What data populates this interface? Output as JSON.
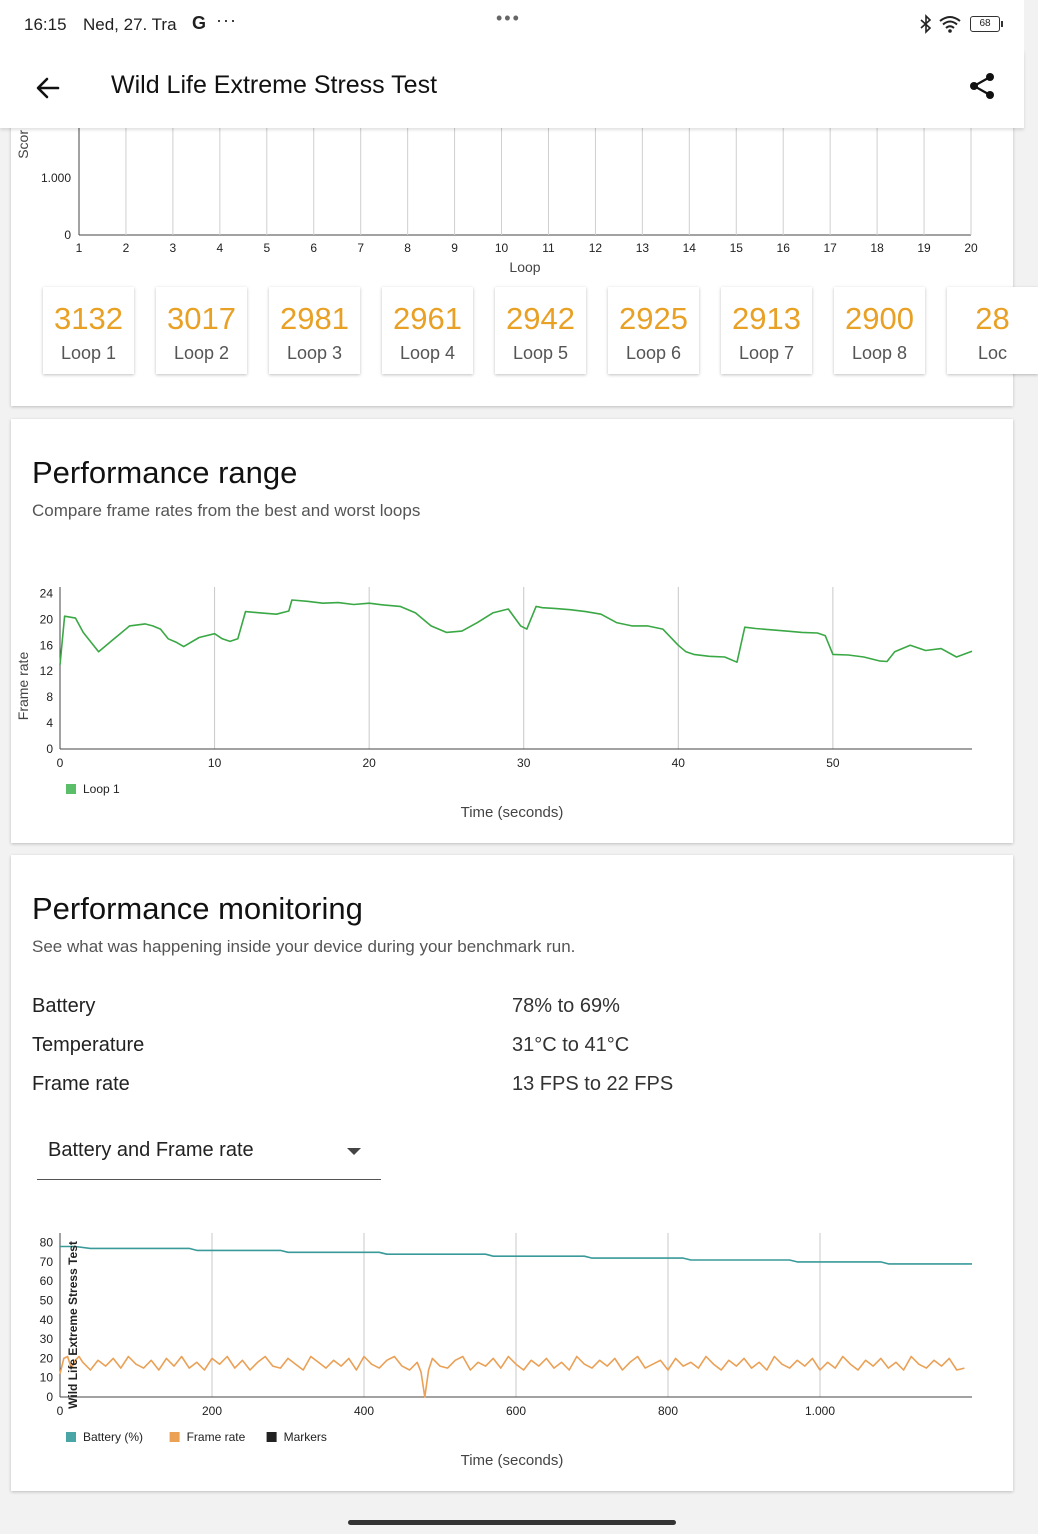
{
  "status": {
    "time": "16:15",
    "date": "Ned, 27. Tra",
    "g_icon": "G",
    "more": "···",
    "battery_level": "68",
    "icons": [
      "bluetooth-icon",
      "wifi-icon",
      "battery-icon"
    ]
  },
  "appbar": {
    "title": "Wild Life Extreme Stress Test",
    "icons": [
      "arrow-back-icon",
      "share-icon"
    ]
  },
  "score_chart": {
    "chart_data": {
      "type": "bar",
      "ylabel": "Scor",
      "xlabel": "Loop",
      "y_tick_labels": [
        "1.000",
        "0"
      ],
      "categories": [
        "1",
        "2",
        "3",
        "4",
        "5",
        "6",
        "7",
        "8",
        "9",
        "10",
        "11",
        "12",
        "13",
        "14",
        "15",
        "16",
        "17",
        "18",
        "19",
        "20"
      ],
      "grid": true
    }
  },
  "loops": [
    {
      "score": "3132",
      "label": "Loop 1"
    },
    {
      "score": "3017",
      "label": "Loop 2"
    },
    {
      "score": "2981",
      "label": "Loop 3"
    },
    {
      "score": "2961",
      "label": "Loop 4"
    },
    {
      "score": "2942",
      "label": "Loop 5"
    },
    {
      "score": "2925",
      "label": "Loop 6"
    },
    {
      "score": "2913",
      "label": "Loop 7"
    },
    {
      "score": "2900",
      "label": "Loop 8"
    },
    {
      "score": "28",
      "label": "Loc"
    }
  ],
  "range": {
    "title": "Performance range",
    "subtitle": "Compare frame rates from the best and worst loops",
    "chart_data": {
      "type": "line",
      "xlabel": "Time (seconds)",
      "ylabel": "Frame rate",
      "xlim": [
        0,
        59
      ],
      "ylim": [
        0,
        25
      ],
      "x_ticks": [
        0,
        10,
        20,
        30,
        40,
        50
      ],
      "y_ticks": [
        0,
        4,
        8,
        12,
        16,
        20,
        24
      ],
      "legend_position": "bottom-left",
      "series": [
        {
          "name": "Loop 1",
          "color": "#3aa845",
          "x": [
            0,
            0.3,
            1,
            1.5,
            2.5,
            3.5,
            4.5,
            5.5,
            6,
            6.5,
            7,
            7.5,
            8,
            9,
            10,
            10.5,
            11,
            11.5,
            12,
            13,
            14,
            14.8,
            15,
            16,
            17,
            18,
            19,
            20,
            21,
            22,
            23,
            24,
            25,
            26,
            27,
            28,
            29,
            29.8,
            30.2,
            30.8,
            31.2,
            32,
            33,
            34,
            35,
            36,
            37,
            38,
            39,
            40,
            40.5,
            41,
            42,
            43,
            43.8,
            44.3,
            45,
            46,
            47,
            48,
            49,
            49.5,
            50,
            51,
            52,
            53,
            53.5,
            54,
            55,
            56,
            57,
            58,
            59
          ],
          "y": [
            13,
            20.5,
            20.2,
            18,
            15,
            17,
            19,
            19.3,
            19,
            18.5,
            17,
            16.5,
            15.8,
            17.2,
            17.8,
            17,
            16.6,
            17,
            21.2,
            21,
            20.8,
            21.3,
            23,
            22.8,
            22.5,
            22.6,
            22.3,
            22.5,
            22.2,
            22,
            21,
            19,
            18,
            18.2,
            19.5,
            21,
            21.6,
            19,
            18.5,
            22,
            21.8,
            21.7,
            21.5,
            21.2,
            20.8,
            19.5,
            19,
            19,
            18.5,
            16,
            15,
            14.6,
            14.3,
            14.2,
            13.4,
            18.8,
            18.6,
            18.4,
            18.2,
            18,
            17.9,
            17.5,
            14.6,
            14.5,
            14.2,
            13.6,
            13.5,
            15,
            16,
            15.2,
            15.5,
            14.2,
            15.1
          ]
        }
      ]
    }
  },
  "monitoring": {
    "title": "Performance monitoring",
    "subtitle": "See what was happening inside your device during your benchmark run.",
    "metrics": [
      {
        "label": "Battery",
        "value": "78% to 69%"
      },
      {
        "label": "Temperature",
        "value": "31°C to 41°C"
      },
      {
        "label": "Frame rate",
        "value": "13 FPS to 22 FPS"
      }
    ],
    "dropdown": {
      "value": "Battery and Frame rate"
    },
    "chart_data": {
      "type": "line",
      "xlabel": "Time (seconds)",
      "marker_label": "Wild Life Extreme Stress Test",
      "xlim": [
        0,
        1200
      ],
      "ylim": [
        0,
        85
      ],
      "x_ticks": [
        0,
        200,
        400,
        600,
        800,
        1000
      ],
      "x_tick_labels": [
        "0",
        "200",
        "400",
        "600",
        "800",
        "1.000"
      ],
      "y_ticks": [
        0,
        10,
        20,
        30,
        40,
        50,
        60,
        70,
        80
      ],
      "legend_position": "bottom-left",
      "legend": [
        {
          "name": "Battery (%)",
          "color": "#4aa6a6"
        },
        {
          "name": "Frame rate",
          "color": "#eaa055"
        },
        {
          "name": "Markers",
          "color": "#222222"
        }
      ],
      "series": [
        {
          "name": "Battery (%)",
          "color": "#3a9a9a",
          "x": [
            0,
            20,
            40,
            170,
            180,
            290,
            300,
            420,
            430,
            560,
            570,
            690,
            700,
            820,
            830,
            960,
            970,
            1080,
            1090,
            1200
          ],
          "y": [
            78,
            78,
            77,
            77,
            76,
            76,
            75,
            75,
            74,
            74,
            73,
            73,
            72,
            72,
            71,
            71,
            70,
            70,
            69,
            69
          ]
        },
        {
          "name": "Frame rate",
          "color": "#eaa055",
          "x": [
            0,
            5,
            10,
            15,
            20,
            25,
            30,
            40,
            50,
            60,
            70,
            80,
            90,
            100,
            110,
            120,
            130,
            140,
            150,
            160,
            170,
            180,
            190,
            200,
            210,
            220,
            230,
            240,
            250,
            260,
            270,
            280,
            290,
            300,
            310,
            320,
            330,
            340,
            350,
            360,
            370,
            380,
            390,
            400,
            410,
            420,
            430,
            440,
            450,
            460,
            470,
            475,
            480,
            485,
            490,
            500,
            510,
            520,
            530,
            540,
            550,
            560,
            570,
            580,
            590,
            600,
            610,
            620,
            630,
            640,
            650,
            660,
            670,
            680,
            690,
            700,
            710,
            720,
            730,
            740,
            750,
            760,
            770,
            780,
            790,
            800,
            810,
            820,
            830,
            840,
            850,
            860,
            870,
            880,
            890,
            900,
            910,
            920,
            930,
            940,
            950,
            960,
            970,
            980,
            990,
            1000,
            1010,
            1020,
            1030,
            1040,
            1050,
            1060,
            1070,
            1080,
            1090,
            1100,
            1110,
            1120,
            1130,
            1140,
            1150,
            1160,
            1170,
            1180,
            1190
          ],
          "y": [
            12,
            20,
            21,
            15,
            19,
            21,
            18,
            14,
            19,
            16,
            20,
            15,
            21,
            17,
            15,
            19,
            14,
            20,
            16,
            21,
            15,
            18,
            14,
            20,
            17,
            21,
            15,
            19,
            14,
            18,
            21,
            16,
            15,
            20,
            17,
            14,
            21,
            18,
            15,
            19,
            16,
            20,
            14,
            21,
            17,
            15,
            19,
            21,
            16,
            14,
            18,
            13,
            0,
            14,
            20,
            16,
            15,
            19,
            21,
            14,
            18,
            16,
            20,
            15,
            21,
            17,
            14,
            19,
            16,
            20,
            15,
            18,
            14,
            21,
            17,
            15,
            19,
            16,
            20,
            14,
            18,
            21,
            15,
            17,
            19,
            14,
            20,
            16,
            18,
            15,
            21,
            17,
            14,
            19,
            16,
            20,
            15,
            18,
            14,
            21,
            17,
            15,
            19,
            16,
            20,
            14,
            18,
            15,
            21,
            17,
            14,
            19,
            16,
            20,
            15,
            18,
            14,
            21,
            17,
            15,
            19,
            16,
            20,
            14,
            15
          ]
        }
      ]
    }
  }
}
